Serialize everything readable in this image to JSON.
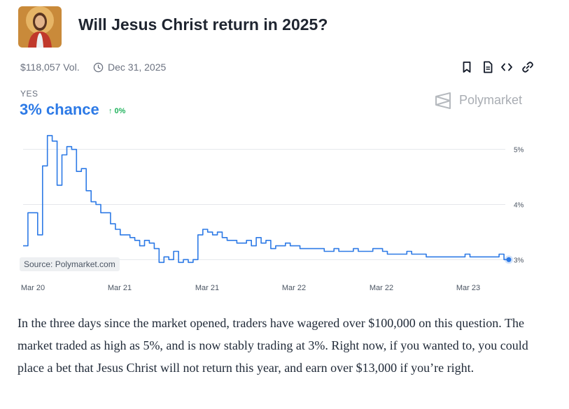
{
  "market": {
    "title": "Will Jesus Christ return in 2025?",
    "volume": "$118,057 Vol.",
    "end_date": "Dec 31, 2025",
    "outcome_label": "YES",
    "chance": "3% chance",
    "change": "↑ 0%",
    "brand": "Polymarket"
  },
  "icons": {
    "avatar": "portrait-image",
    "clock": "clock-icon",
    "bookmark": "bookmark-icon",
    "document": "document-icon",
    "embed": "code-icon",
    "link": "link-icon",
    "brand": "polymarket-logo"
  },
  "colors": {
    "accent": "#2d7ae6",
    "positive": "#22b35e",
    "line": "#2d7ae6"
  },
  "chart_data": {
    "type": "line",
    "title": "",
    "xlabel": "",
    "ylabel": "",
    "source_note": "Source: Polymarket.com",
    "x_ticks": [
      "Mar 20",
      "Mar 21",
      "Mar 21",
      "Mar 22",
      "Mar 22",
      "Mar 23"
    ],
    "y_ticks": [
      "5%",
      "4%",
      "3%"
    ],
    "y_tick_values": [
      5,
      4,
      3
    ],
    "ylim": [
      2.7,
      5.3
    ],
    "grid": true,
    "last_value_label": "3%",
    "series": [
      {
        "x": [
          0,
          1,
          2,
          3,
          4,
          5,
          6,
          7,
          8,
          9,
          10,
          11,
          12,
          13,
          14,
          15,
          16,
          17,
          18,
          19,
          20,
          21,
          22,
          23,
          24,
          25,
          26,
          27,
          28,
          29,
          30,
          31,
          32,
          33,
          34,
          35,
          36,
          37,
          38,
          39,
          40,
          41,
          42,
          43,
          44,
          45,
          46,
          47,
          48,
          49,
          50,
          51,
          52,
          53,
          54,
          55,
          56,
          57,
          58,
          59,
          60,
          61,
          62,
          63,
          64,
          65,
          66,
          67,
          68,
          69,
          70,
          71,
          72,
          73,
          74,
          75,
          76,
          77,
          78,
          79,
          80,
          81,
          82,
          83,
          84,
          85,
          86,
          87,
          88,
          89,
          90,
          91,
          92,
          93,
          94,
          95,
          96,
          97,
          98,
          99,
          100
        ],
        "values": [
          3.25,
          3.85,
          3.85,
          3.45,
          4.7,
          5.25,
          5.15,
          4.35,
          4.9,
          5.05,
          5.0,
          4.6,
          4.65,
          4.25,
          4.05,
          4.0,
          3.85,
          3.85,
          3.65,
          3.55,
          3.45,
          3.45,
          3.4,
          3.35,
          3.25,
          3.35,
          3.3,
          3.2,
          2.95,
          3.05,
          3.0,
          3.15,
          2.95,
          3.0,
          2.95,
          3.0,
          3.45,
          3.55,
          3.5,
          3.45,
          3.5,
          3.4,
          3.35,
          3.35,
          3.3,
          3.3,
          3.35,
          3.25,
          3.4,
          3.3,
          3.35,
          3.2,
          3.25,
          3.25,
          3.3,
          3.25,
          3.25,
          3.2,
          3.2,
          3.2,
          3.2,
          3.2,
          3.15,
          3.15,
          3.2,
          3.15,
          3.15,
          3.15,
          3.2,
          3.15,
          3.15,
          3.15,
          3.2,
          3.2,
          3.15,
          3.1,
          3.1,
          3.1,
          3.1,
          3.15,
          3.1,
          3.1,
          3.1,
          3.05,
          3.05,
          3.05,
          3.05,
          3.05,
          3.05,
          3.05,
          3.05,
          3.1,
          3.05,
          3.05,
          3.05,
          3.05,
          3.05,
          3.05,
          3.1,
          3.0,
          3.0
        ]
      }
    ]
  },
  "article": {
    "paragraph": "In the three days since the market opened, traders have wagered over $100,000 on this question. The market traded as high as 5%, and is now stably trading at 3%. Right now, if you wanted to, you could place a bet that Jesus Christ will not return this year, and earn over $13,000 if you’re right."
  }
}
